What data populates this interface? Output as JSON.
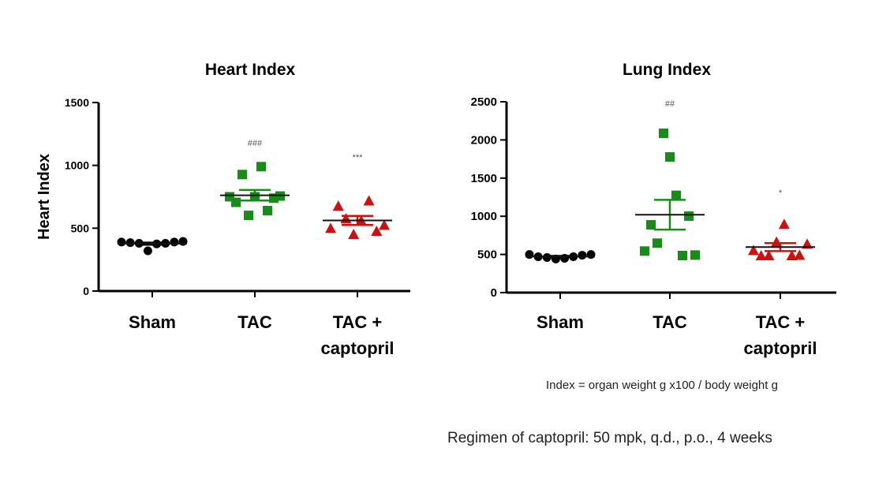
{
  "chart_data": [
    {
      "type": "scatter",
      "title": "Heart Index",
      "ylabel": "Heart Index",
      "xlabel": "",
      "ylim": [
        0,
        1500
      ],
      "yticks": [
        0,
        500,
        1000,
        1500
      ],
      "categories": [
        "Sham",
        "TAC",
        "TAC + captopril"
      ],
      "groups": [
        {
          "category": "Sham",
          "color": "#000000",
          "marker": "circle",
          "values": [
            390,
            385,
            380,
            320,
            375,
            380,
            390,
            395
          ],
          "mean": 377,
          "sem": 8,
          "annotation": ""
        },
        {
          "category": "TAC",
          "color": "#1a8a1a",
          "marker": "square",
          "values": [
            750,
            706,
            927,
            602,
            750,
            990,
            640,
            739,
            756
          ],
          "mean": 762,
          "sem": 42,
          "annotation": "###"
        },
        {
          "category": "TAC + captopril",
          "color": "#cc1111",
          "marker": "triangle",
          "values": [
            500,
            677,
            577,
            452,
            560,
            719,
            477,
            525
          ],
          "mean": 562,
          "sem": 36,
          "annotation": "***"
        }
      ]
    },
    {
      "type": "scatter",
      "title": "Lung Index",
      "ylabel": "",
      "xlabel": "",
      "ylim": [
        0,
        2500
      ],
      "yticks": [
        0,
        500,
        1000,
        1500,
        2000,
        2500
      ],
      "categories": [
        "Sham",
        "TAC",
        "TAC + captopril"
      ],
      "groups": [
        {
          "category": "Sham",
          "color": "#000000",
          "marker": "circle",
          "values": [
            500,
            470,
            460,
            440,
            450,
            470,
            490,
            500
          ],
          "mean": 473,
          "sem": 8,
          "annotation": ""
        },
        {
          "category": "TAC",
          "color": "#1a8a1a",
          "marker": "square",
          "values": [
            544,
            888,
            648,
            2087,
            1777,
            1274,
            486,
            1002,
            492
          ],
          "mean": 1020,
          "sem": 195,
          "annotation": "##"
        },
        {
          "category": "TAC + captopril",
          "color": "#cc1111",
          "marker": "triangle",
          "values": [
            554,
            486,
            486,
            664,
            896,
            486,
            492,
            637
          ],
          "mean": 596,
          "sem": 52,
          "annotation": "*"
        }
      ]
    }
  ],
  "notes": {
    "index_formula": "Index = organ weight g x100 / body weight g",
    "regimen": "Regimen of captopril: 50 mpk, q.d., p.o., 4 weeks"
  }
}
